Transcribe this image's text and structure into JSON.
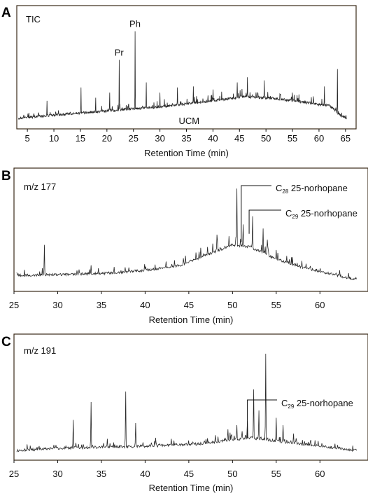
{
  "chart_data": [
    {
      "type": "line",
      "panel": "A",
      "inset_label": "TIC",
      "xlabel": "Retention Time (min)",
      "xlim": [
        3,
        67
      ],
      "x_ticks": [
        5,
        10,
        15,
        20,
        25,
        30,
        35,
        40,
        45,
        50,
        55,
        60,
        65
      ],
      "annotations": [
        {
          "text": "Pr",
          "x": 22.3
        },
        {
          "text": "Ph",
          "x": 25.3
        },
        {
          "text": "UCM",
          "x": 35.5
        }
      ],
      "series": [
        {
          "baseline": [
            [
              3.3,
              0.05
            ],
            [
              10,
              0.08
            ],
            [
              20,
              0.12
            ],
            [
              30,
              0.16
            ],
            [
              40,
              0.22
            ],
            [
              46,
              0.26
            ],
            [
              52,
              0.24
            ],
            [
              58,
              0.2
            ],
            [
              62,
              0.17
            ],
            [
              64,
              0.08
            ],
            [
              65.2,
              0.05
            ]
          ],
          "peaks": [
            [
              8.7,
              0.22
            ],
            [
              15.1,
              0.35
            ],
            [
              17.9,
              0.25
            ],
            [
              20.5,
              0.3
            ],
            [
              22.3,
              0.62
            ],
            [
              25.3,
              0.9
            ],
            [
              27.4,
              0.4
            ],
            [
              30.0,
              0.3
            ],
            [
              33.3,
              0.35
            ],
            [
              36.3,
              0.36
            ],
            [
              40.0,
              0.33
            ],
            [
              44.6,
              0.4
            ],
            [
              46.5,
              0.45
            ],
            [
              49.7,
              0.42
            ],
            [
              61.0,
              0.36
            ],
            [
              63.5,
              0.53
            ]
          ]
        }
      ]
    },
    {
      "type": "line",
      "panel": "B",
      "inset_label": "m/z 177",
      "xlabel": "Retention Time (min)",
      "xlim": [
        25,
        65.5
      ],
      "x_ticks": [
        25,
        30,
        35,
        40,
        45,
        50,
        55,
        60
      ],
      "annotations": [
        {
          "text": "C28 25-norhopane",
          "base": "C",
          "sub": "28",
          "rest": " 25-norhopane",
          "x": 51.0
        },
        {
          "text": "C29 25-norhopane",
          "base": "C",
          "sub": "29",
          "rest": " 25-norhopane",
          "x": 51.9
        }
      ],
      "series": [
        {
          "baseline": [
            [
              25.3,
              0.1
            ],
            [
              30,
              0.11
            ],
            [
              35,
              0.12
            ],
            [
              40,
              0.15
            ],
            [
              44,
              0.2
            ],
            [
              47,
              0.3
            ],
            [
              50,
              0.4
            ],
            [
              52,
              0.38
            ],
            [
              55,
              0.26
            ],
            [
              58,
              0.18
            ],
            [
              62,
              0.1
            ],
            [
              64.2,
              0.06
            ]
          ],
          "peaks": [
            [
              28.5,
              0.4
            ],
            [
              33.8,
              0.2
            ],
            [
              37.7,
              0.18
            ],
            [
              48.2,
              0.5
            ],
            [
              50.5,
              0.95
            ],
            [
              51.2,
              0.6
            ],
            [
              52.3,
              0.68
            ],
            [
              53.5,
              0.56
            ],
            [
              54.0,
              0.45
            ],
            [
              55.0,
              0.35
            ]
          ]
        }
      ]
    },
    {
      "type": "line",
      "panel": "C",
      "inset_label": "m/z 191",
      "xlabel": "Retention Time (min)",
      "xlim": [
        25,
        65.5
      ],
      "x_ticks": [
        25,
        30,
        35,
        40,
        45,
        50,
        55,
        60
      ],
      "annotations": [
        {
          "text": "C29 25-norhopane",
          "base": "C",
          "sub": "29",
          "rest": " 25-norhopane",
          "x": 51.7
        }
      ],
      "series": [
        {
          "baseline": [
            [
              25.3,
              0.04
            ],
            [
              30,
              0.06
            ],
            [
              40,
              0.08
            ],
            [
              46,
              0.1
            ],
            [
              52,
              0.16
            ],
            [
              56,
              0.12
            ],
            [
              60,
              0.08
            ],
            [
              64.2,
              0.04
            ]
          ],
          "peaks": [
            [
              29.8,
              0.09
            ],
            [
              31.8,
              0.33
            ],
            [
              33.8,
              0.5
            ],
            [
              35.7,
              0.15
            ],
            [
              37.8,
              0.6
            ],
            [
              38.9,
              0.3
            ],
            [
              41.2,
              0.16
            ],
            [
              43.0,
              0.15
            ],
            [
              47.0,
              0.12
            ],
            [
              49.5,
              0.24
            ],
            [
              50.5,
              0.28
            ],
            [
              51.7,
              0.32
            ],
            [
              52.4,
              0.62
            ],
            [
              53.0,
              0.42
            ],
            [
              53.8,
              0.96
            ],
            [
              55.0,
              0.35
            ],
            [
              55.8,
              0.28
            ],
            [
              57.0,
              0.2
            ]
          ]
        }
      ]
    }
  ]
}
